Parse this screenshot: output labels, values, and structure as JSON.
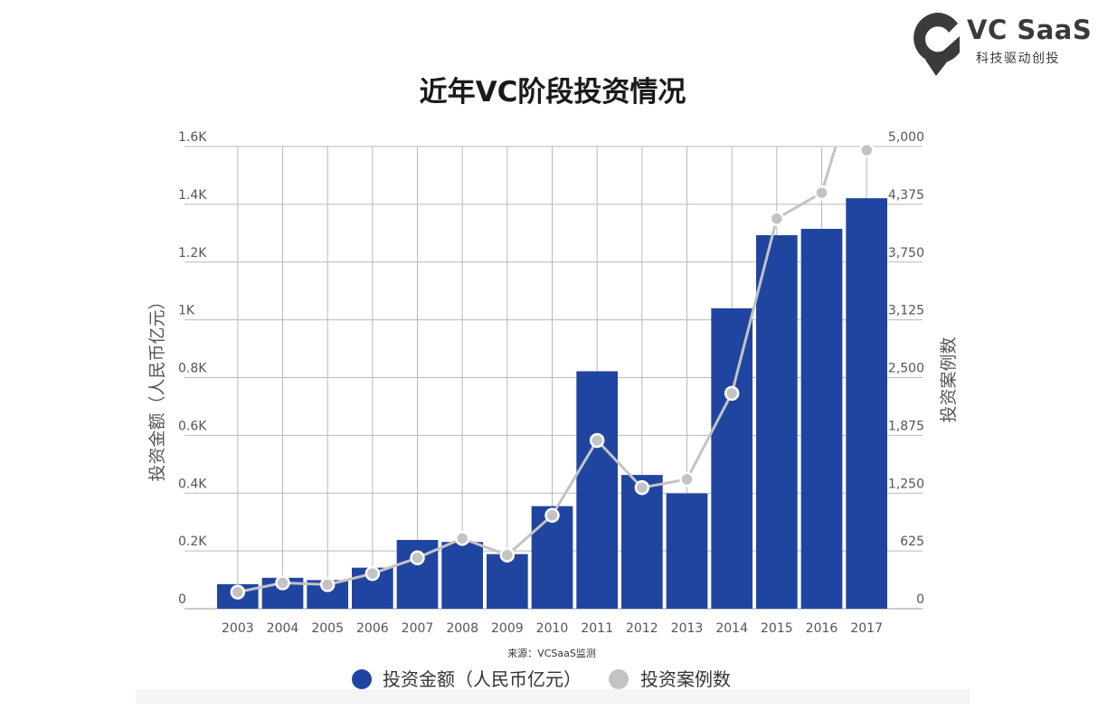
{
  "logo": {
    "name": "VC SaaS",
    "slogan": "科技驱动创投"
  },
  "source_note": "来源：VCSaaS监测",
  "chart_data": {
    "type": "bar",
    "title": "近年VC阶段投资情况",
    "categories": [
      "2003",
      "2004",
      "2005",
      "2006",
      "2007",
      "2008",
      "2009",
      "2010",
      "2011",
      "2012",
      "2013",
      "2014",
      "2015",
      "2016",
      "2017"
    ],
    "series": [
      {
        "name": "投资金额（人民币亿元）",
        "type": "bar",
        "axis": "left",
        "color": "#1f45a0",
        "values": [
          85,
          107,
          99,
          142,
          238,
          231,
          189,
          355,
          822,
          463,
          399,
          1040,
          1293,
          1315,
          1421
        ]
      },
      {
        "name": "投资案例数",
        "type": "line",
        "axis": "right",
        "color": "#c3c3c3",
        "values": [
          180,
          280,
          260,
          380,
          550,
          760,
          580,
          1010,
          1820,
          1310,
          1400,
          2330,
          4220,
          4500,
          6100
        ]
      }
    ],
    "y_left": {
      "label": "投资金额（人民币亿元）",
      "ylim": [
        0,
        1600
      ],
      "ticks": [
        0,
        200,
        400,
        600,
        800,
        1000,
        1200,
        1400,
        1600
      ],
      "tick_labels": [
        "0",
        "0.2K",
        "0.4K",
        "0.6K",
        "0.8K",
        "1K",
        "1.2K",
        "1.4K",
        "1.6K"
      ]
    },
    "y_right": {
      "label": "投资案例数",
      "ylim": [
        0,
        5000
      ],
      "ticks": [
        0,
        625,
        1250,
        1875,
        2500,
        3125,
        3750,
        4375,
        5000
      ],
      "tick_labels": [
        "0",
        "625",
        "1,250",
        "1,875",
        "2,500",
        "3,125",
        "3,750",
        "4,375",
        "5,000"
      ]
    },
    "grid": true,
    "legend": "bottom",
    "colors": {
      "grid": "#b9b9b9",
      "axis_text": "#555555",
      "title": "#1a1a1a"
    }
  }
}
